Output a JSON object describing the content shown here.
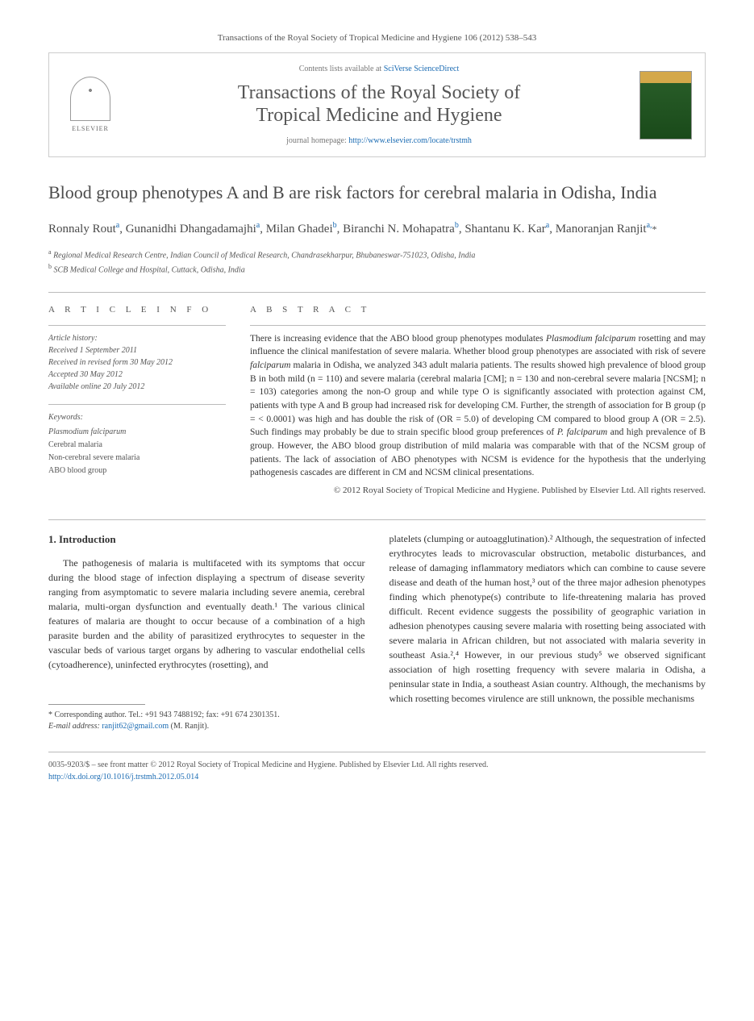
{
  "header": {
    "citation_line": "Transactions of the Royal Society of Tropical Medicine and Hygiene 106 (2012) 538–543",
    "contents_prefix": "Contents lists available at ",
    "contents_link": "SciVerse ScienceDirect",
    "journal_title_line1": "Transactions of the Royal Society of",
    "journal_title_line2": "Tropical Medicine and Hygiene",
    "homepage_prefix": "journal homepage: ",
    "homepage_url": "http://www.elsevier.com/locate/trstmh",
    "elsevier_label": "ELSEVIER"
  },
  "article": {
    "title": "Blood group phenotypes A and B are risk factors for cerebral malaria in Odisha, India",
    "authors_html": "Ronnaly Rout<sup>a</sup>, Gunanidhi Dhangadamajhi<sup>a</sup>, Milan Ghadei<sup>b</sup>, Biranchi N. Mohapatra<sup>b</sup>, Shantanu K. Kar<sup>a</sup>, Manoranjan Ranjit<sup>a,</sup><span class='corr'>*</span>",
    "affiliations": {
      "a": "Regional Medical Research Centre, Indian Council of Medical Research, Chandrasekharpur, Bhubaneswar-751023, Odisha, India",
      "b": "SCB Medical College and Hospital, Cuttack, Odisha, India"
    }
  },
  "article_info": {
    "heading": "a r t i c l e   i n f o",
    "history_label": "Article history:",
    "received": "Received 1 September 2011",
    "revised": "Received in revised form 30 May 2012",
    "accepted": "Accepted 30 May 2012",
    "online": "Available online 20 July 2012",
    "keywords_label": "Keywords:",
    "keywords": [
      "Plasmodium falciparum",
      "Cerebral malaria",
      "Non-cerebral severe malaria",
      "ABO blood group"
    ]
  },
  "abstract": {
    "heading": "a b s t r a c t",
    "text": "There is increasing evidence that the ABO blood group phenotypes modulates Plasmodium falciparum rosetting and may influence the clinical manifestation of severe malaria. Whether blood group phenotypes are associated with risk of severe falciparum malaria in Odisha, we analyzed 343 adult malaria patients. The results showed high prevalence of blood group B in both mild (n = 110) and severe malaria (cerebral malaria [CM]; n = 130 and non-cerebral severe malaria [NCSM]; n = 103) categories among the non-O group and while type O is significantly associated with protection against CM, patients with type A and B group had increased risk for developing CM. Further, the strength of association for B group (p = < 0.0001) was high and has double the risk of (OR = 5.0) of developing CM compared to blood group A (OR = 2.5). Such findings may probably be due to strain specific blood group preferences of P. falciparum and high prevalence of B group. However, the ABO blood group distribution of mild malaria was comparable with that of the NCSM group of patients. The lack of association of ABO phenotypes with NCSM is evidence for the hypothesis that the underlying pathogenesis cascades are different in CM and NCSM clinical presentations.",
    "copyright": "© 2012 Royal Society of Tropical Medicine and Hygiene. Published by Elsevier Ltd. All rights reserved."
  },
  "body": {
    "section_number": "1.",
    "section_title": "Introduction",
    "col1_para": "The pathogenesis of malaria is multifaceted with its symptoms that occur during the blood stage of infection displaying a spectrum of disease severity ranging from asymptomatic to severe malaria including severe anemia, cerebral malaria, multi-organ dysfunction and eventually death.¹ The various clinical features of malaria are thought to occur because of a combination of a high parasite burden and the ability of parasitized erythrocytes to sequester in the vascular beds of various target organs by adhering to vascular endothelial cells (cytoadherence), uninfected erythrocytes (rosetting), and",
    "col2_para": "platelets (clumping or autoagglutination).² Although, the sequestration of infected erythrocytes leads to microvascular obstruction, metabolic disturbances, and release of damaging inflammatory mediators which can combine to cause severe disease and death of the human host,³ out of the three major adhesion phenotypes finding which phenotype(s) contribute to life-threatening malaria has proved difficult. Recent evidence suggests the possibility of geographic variation in adhesion phenotypes causing severe malaria with rosetting being associated with severe malaria in African children, but not associated with malaria severity in southeast Asia.²,⁴ However, in our previous study⁵ we observed significant association of high rosetting frequency with severe malaria in Odisha, a peninsular state in India, a southeast Asian country. Although, the mechanisms by which rosetting becomes virulence are still unknown, the possible mechanisms"
  },
  "footnote": {
    "corr_label": "* Corresponding author. Tel.: +91 943 7488192; fax: +91 674 2301351.",
    "email_label": "E-mail address:",
    "email": "ranjit62@gmail.com",
    "email_suffix": "(M. Ranjit)."
  },
  "bottom": {
    "issn_line": "0035-9203/$ – see front matter © 2012 Royal Society of Tropical Medicine and Hygiene. Published by Elsevier Ltd. All rights reserved.",
    "doi": "http://dx.doi.org/10.1016/j.trstmh.2012.05.014"
  },
  "colors": {
    "link": "#1a6bb3",
    "text": "#333333",
    "muted": "#555555",
    "rule": "#bbbbbb"
  }
}
